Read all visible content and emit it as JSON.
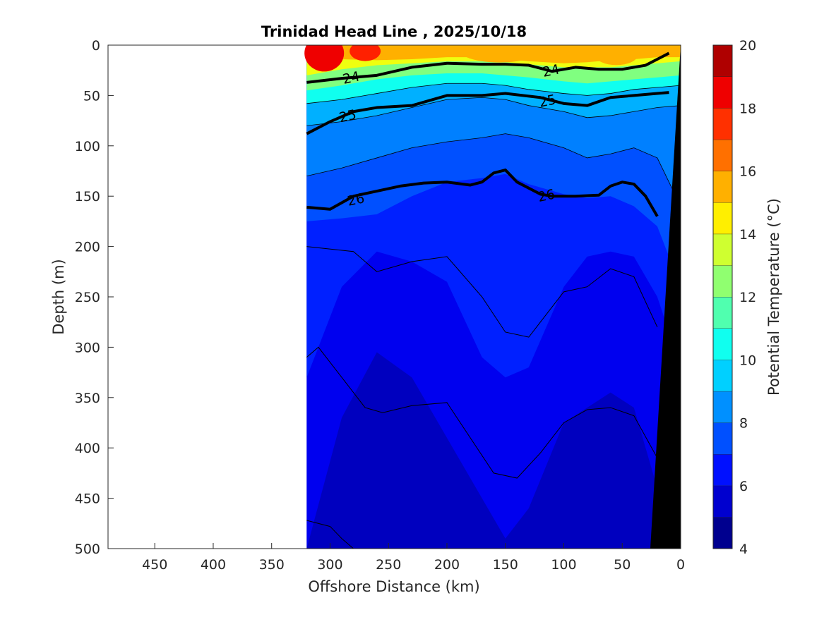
{
  "chart_data": {
    "type": "heatmap",
    "subtype": "filled-contour depth section",
    "title": "Trinidad Head Line , 2025/10/18",
    "xlabel": "Offshore Distance (km)",
    "ylabel": "Depth (m)",
    "xlim": [
      490,
      0
    ],
    "x_reversed": true,
    "ylim": [
      0,
      500
    ],
    "y_reversed": true,
    "xticks": [
      "450",
      "400",
      "350",
      "300",
      "250",
      "200",
      "150",
      "100",
      "50",
      "0"
    ],
    "yticks": [
      "0",
      "50",
      "100",
      "150",
      "200",
      "250",
      "300",
      "350",
      "400",
      "450",
      "500"
    ],
    "colorbar": {
      "label": "Potential Temperature (°C)",
      "range": [
        4,
        20
      ],
      "ticks": [
        "4",
        "6",
        "8",
        "10",
        "12",
        "14",
        "16",
        "18",
        "20"
      ],
      "levels": [
        4,
        5,
        6,
        7,
        8,
        9,
        10,
        11,
        12,
        13,
        14,
        15,
        16,
        17,
        18,
        19,
        20
      ],
      "colors": [
        "#00008f",
        "#0000bf",
        "#0000ef",
        "#0020ff",
        "#0050ff",
        "#0080ff",
        "#00b0ff",
        "#00dfff",
        "#10ffef",
        "#40ffbf",
        "#80ff80",
        "#bfff40",
        "#efff10",
        "#ffdf00",
        "#ffb000",
        "#ff8000",
        "#ff5000",
        "#ff2000",
        "#ef0000",
        "#bf0000",
        "#8f0000"
      ]
    },
    "data_extent_km": [
      320,
      0
    ],
    "bathymetry_color": "#000000",
    "isotherm_depths_m": {
      "x_km": [
        320,
        290,
        260,
        230,
        200,
        170,
        150,
        130,
        100,
        80,
        60,
        40,
        20,
        0
      ],
      "t15": [
        10,
        14,
        15,
        14,
        12,
        12,
        14,
        16,
        18,
        17,
        15,
        14,
        12,
        12
      ],
      "t14": [
        30,
        24,
        20,
        18,
        16,
        16,
        17,
        19,
        22,
        22,
        22,
        20,
        18,
        16
      ],
      "t12": [
        45,
        40,
        34,
        30,
        28,
        28,
        30,
        32,
        36,
        38,
        36,
        34,
        32,
        30
      ],
      "t11": [
        58,
        54,
        48,
        42,
        38,
        38,
        40,
        44,
        48,
        50,
        48,
        44,
        42,
        40
      ],
      "t10": [
        80,
        76,
        70,
        62,
        54,
        52,
        54,
        60,
        66,
        72,
        70,
        66,
        62,
        60
      ],
      "t9": [
        130,
        122,
        112,
        102,
        96,
        92,
        88,
        92,
        102,
        112,
        108,
        102,
        112,
        160
      ],
      "t8": [
        175,
        172,
        168,
        150,
        136,
        132,
        128,
        138,
        148,
        152,
        150,
        160,
        180,
        240
      ],
      "t7": [
        330,
        240,
        205,
        215,
        235,
        310,
        330,
        320,
        240,
        210,
        205,
        210,
        250,
        320
      ],
      "t6": [
        500,
        370,
        305,
        330,
        390,
        450,
        490,
        460,
        375,
        360,
        345,
        360,
        440,
        500
      ],
      "t5": [
        500,
        500,
        500,
        500,
        500,
        500,
        500,
        500,
        500,
        500,
        500,
        500,
        500,
        500
      ]
    },
    "contours": [
      {
        "label": "24",
        "x_km": [
          320,
          290,
          260,
          230,
          200,
          170,
          150,
          130,
          110,
          90,
          70,
          50,
          30,
          20,
          10
        ],
        "depth_m": [
          37,
          33,
          30,
          22,
          18,
          19,
          19,
          20,
          26,
          22,
          24,
          24,
          20,
          14,
          8
        ]
      },
      {
        "label": "25",
        "x_km": [
          320,
          300,
          280,
          260,
          230,
          200,
          170,
          150,
          120,
          100,
          80,
          60,
          40,
          20,
          10
        ],
        "depth_m": [
          88,
          76,
          66,
          62,
          60,
          50,
          50,
          48,
          52,
          58,
          60,
          52,
          50,
          48,
          47
        ]
      },
      {
        "label": "26",
        "x_km": [
          320,
          300,
          280,
          260,
          240,
          220,
          200,
          180,
          170,
          160,
          150,
          140,
          120,
          110,
          90,
          70,
          60,
          50,
          40,
          30,
          20
        ],
        "depth_m": [
          161,
          163,
          150,
          145,
          140,
          137,
          136,
          139,
          136,
          127,
          124,
          136,
          148,
          150,
          150,
          149,
          140,
          136,
          138,
          150,
          170
        ]
      }
    ],
    "thin_contours": [
      {
        "x_km": [
          320,
          280,
          260,
          230,
          200,
          170,
          150,
          130,
          100,
          80,
          60,
          40,
          20
        ],
        "depth_m": [
          200,
          205,
          225,
          215,
          210,
          250,
          285,
          290,
          245,
          240,
          222,
          230,
          280
        ]
      },
      {
        "x_km": [
          320,
          310,
          290,
          270,
          255,
          230,
          200,
          180,
          160,
          140,
          120,
          100,
          80,
          60,
          40,
          20
        ],
        "depth_m": [
          310,
          300,
          330,
          360,
          365,
          358,
          355,
          390,
          425,
          430,
          405,
          375,
          362,
          360,
          368,
          410
        ]
      },
      {
        "x_km": [
          320,
          300,
          290,
          280
        ],
        "depth_m": [
          472,
          478,
          490,
          500
        ]
      }
    ],
    "contour_labels": [
      {
        "text": "24",
        "x_km": 282,
        "depth_m": 32
      },
      {
        "text": "24",
        "x_km": 111,
        "depth_m": 25
      },
      {
        "text": "25",
        "x_km": 285,
        "depth_m": 70
      },
      {
        "text": "25",
        "x_km": 114,
        "depth_m": 55
      },
      {
        "text": "26",
        "x_km": 278,
        "depth_m": 153
      },
      {
        "text": "26",
        "x_km": 115,
        "depth_m": 149
      }
    ]
  }
}
